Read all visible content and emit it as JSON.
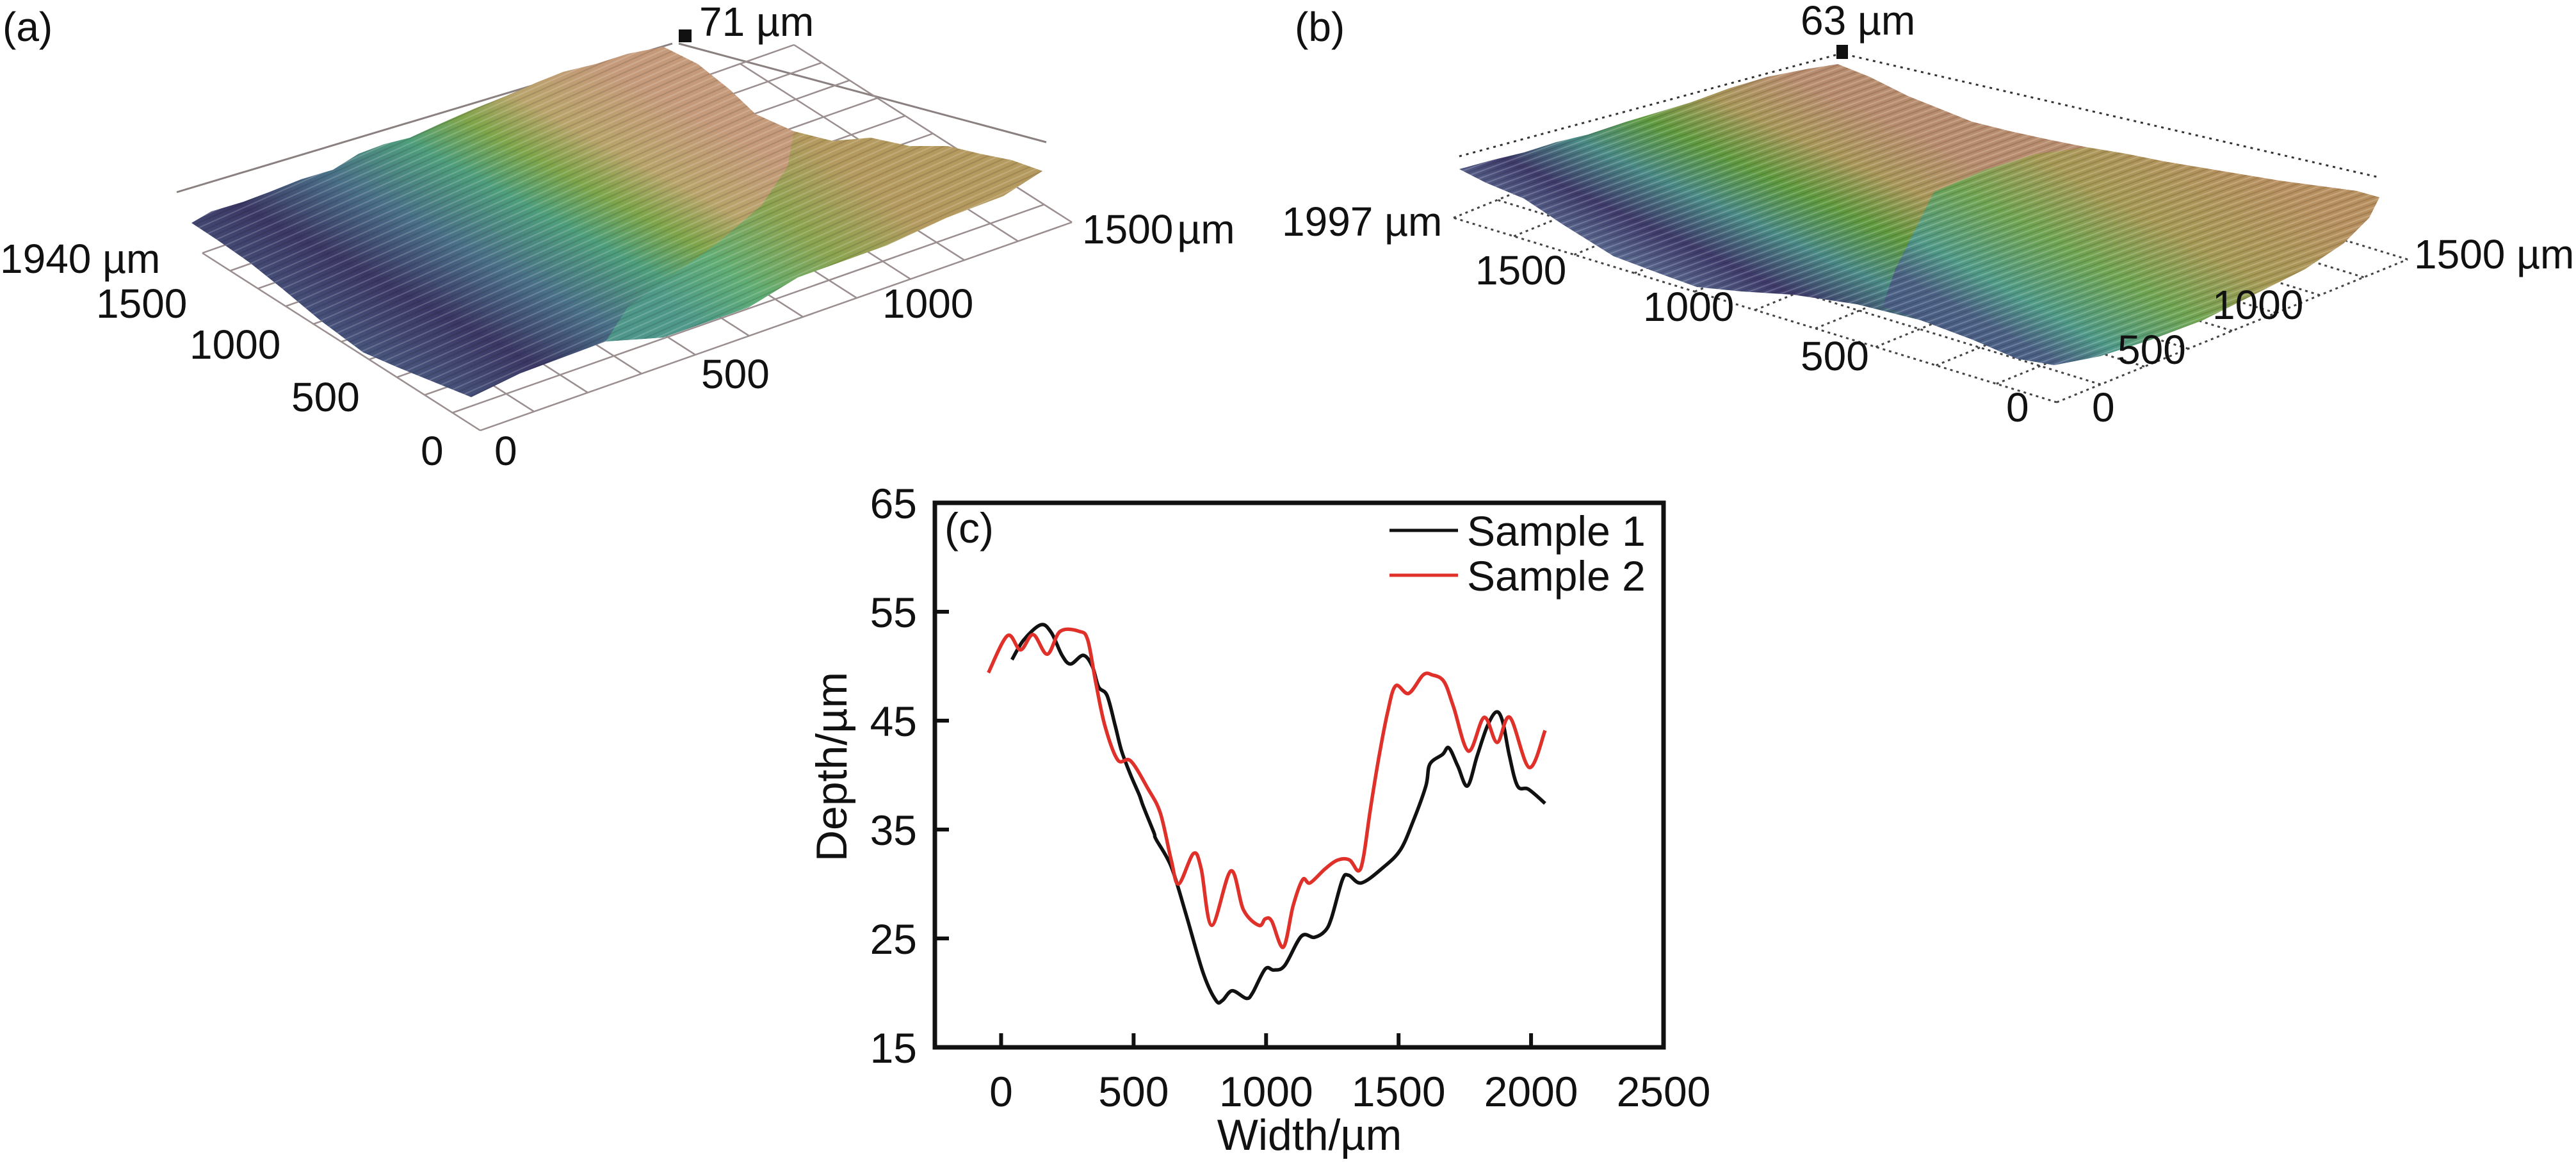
{
  "panels": {
    "a": {
      "tag": "(a)",
      "z_max_label": "71 µm",
      "left_axis_end_label": "1940 µm",
      "left_axis_ticks": [
        "1500",
        "1000",
        "500",
        "0"
      ],
      "right_axis_ticks": [
        "0",
        "500",
        "1000"
      ],
      "right_axis_end_label": "1500",
      "right_axis_unit": "µm"
    },
    "b": {
      "tag": "(b)",
      "z_max_label": "63 µm",
      "left_axis_end_label": "1997 µm",
      "left_axis_ticks": [
        "1500",
        "1000",
        "500",
        "0"
      ],
      "right_axis_ticks": [
        "0",
        "500",
        "1000"
      ],
      "right_axis_end_label": "1500 µm"
    }
  },
  "colors": {
    "sample1": "#111111",
    "sample2": "#e0302a",
    "grid": "#8a7f80",
    "surface_low": "#3a2f5e",
    "surface_mid": "#4e9a8c",
    "surface_green": "#5f9a3a",
    "surface_high": "#c49a6c"
  },
  "chart_data": {
    "type": "line",
    "panel_tag": "(c)",
    "title": "",
    "xlabel": "Width/µm",
    "ylabel": "Depth/µm",
    "xlim": [
      -250,
      2500
    ],
    "ylim": [
      15,
      65
    ],
    "xticks": [
      0,
      500,
      1000,
      1500,
      2000,
      2500
    ],
    "xtick_labels": [
      "0",
      "500",
      "1000",
      "1500",
      "2000",
      "2500"
    ],
    "yticks": [
      15,
      25,
      35,
      45,
      55,
      65
    ],
    "ytick_labels": [
      "15",
      "25",
      "35",
      "45",
      "55",
      "65"
    ],
    "grid": false,
    "legend_position": "top-right",
    "series": [
      {
        "name": "Sample 1",
        "color": "#111111",
        "x": [
          41,
          85,
          150,
          189,
          230,
          262,
          310,
          344,
          368,
          400,
          431,
          455,
          489,
          521,
          537,
          577,
          585,
          642,
          698,
          763,
          811,
          835,
          872,
          925,
          949,
          997,
          1029,
          1070,
          1133,
          1182,
          1223,
          1247,
          1288,
          1312,
          1360,
          1441,
          1506,
          1554,
          1603,
          1618,
          1666,
          1690,
          1724,
          1760,
          1797,
          1835,
          1869,
          1893,
          1918,
          1949,
          1990,
          2053
        ],
        "y": [
          50.6,
          52.4,
          53.8,
          53.1,
          51.0,
          50.2,
          51.0,
          50.0,
          48.1,
          47.3,
          44.5,
          42.2,
          40.0,
          38.2,
          37.1,
          34.7,
          34.1,
          31.6,
          27.2,
          21.8,
          19.3,
          19.3,
          20.2,
          19.5,
          20.0,
          22.2,
          22.1,
          22.5,
          25.2,
          25.1,
          25.7,
          26.9,
          30.4,
          30.8,
          30.1,
          31.5,
          33.1,
          35.7,
          39.0,
          41.0,
          41.9,
          42.5,
          40.8,
          39.0,
          41.8,
          44.5,
          45.8,
          44.9,
          41.8,
          39.0,
          38.7,
          37.4
        ]
      },
      {
        "name": "Sample 2",
        "color": "#e0302a",
        "x": [
          -48,
          24,
          73,
          121,
          174,
          223,
          295,
          327,
          358,
          392,
          440,
          489,
          553,
          601,
          642,
          670,
          726,
          755,
          795,
          867,
          915,
          973,
          997,
          1021,
          1065,
          1102,
          1138,
          1166,
          1223,
          1271,
          1315,
          1348,
          1367,
          1392,
          1424,
          1458,
          1489,
          1538,
          1593,
          1627,
          1671,
          1707,
          1764,
          1823,
          1872,
          1920,
          1993,
          2053
        ],
        "y": [
          49.4,
          52.8,
          51.5,
          52.9,
          51.1,
          53.2,
          53.2,
          52.4,
          48.4,
          44.5,
          41.4,
          41.3,
          38.8,
          36.5,
          32.2,
          30.0,
          32.8,
          31.4,
          26.2,
          31.2,
          27.6,
          26.2,
          26.8,
          26.6,
          24.2,
          28.0,
          30.4,
          30.1,
          31.4,
          32.2,
          32.2,
          31.2,
          32.4,
          36.6,
          41.4,
          45.7,
          48.2,
          47.5,
          49.2,
          49.2,
          48.6,
          46.3,
          42.2,
          45.3,
          43.0,
          45.3,
          40.7,
          44.1
        ]
      }
    ]
  }
}
